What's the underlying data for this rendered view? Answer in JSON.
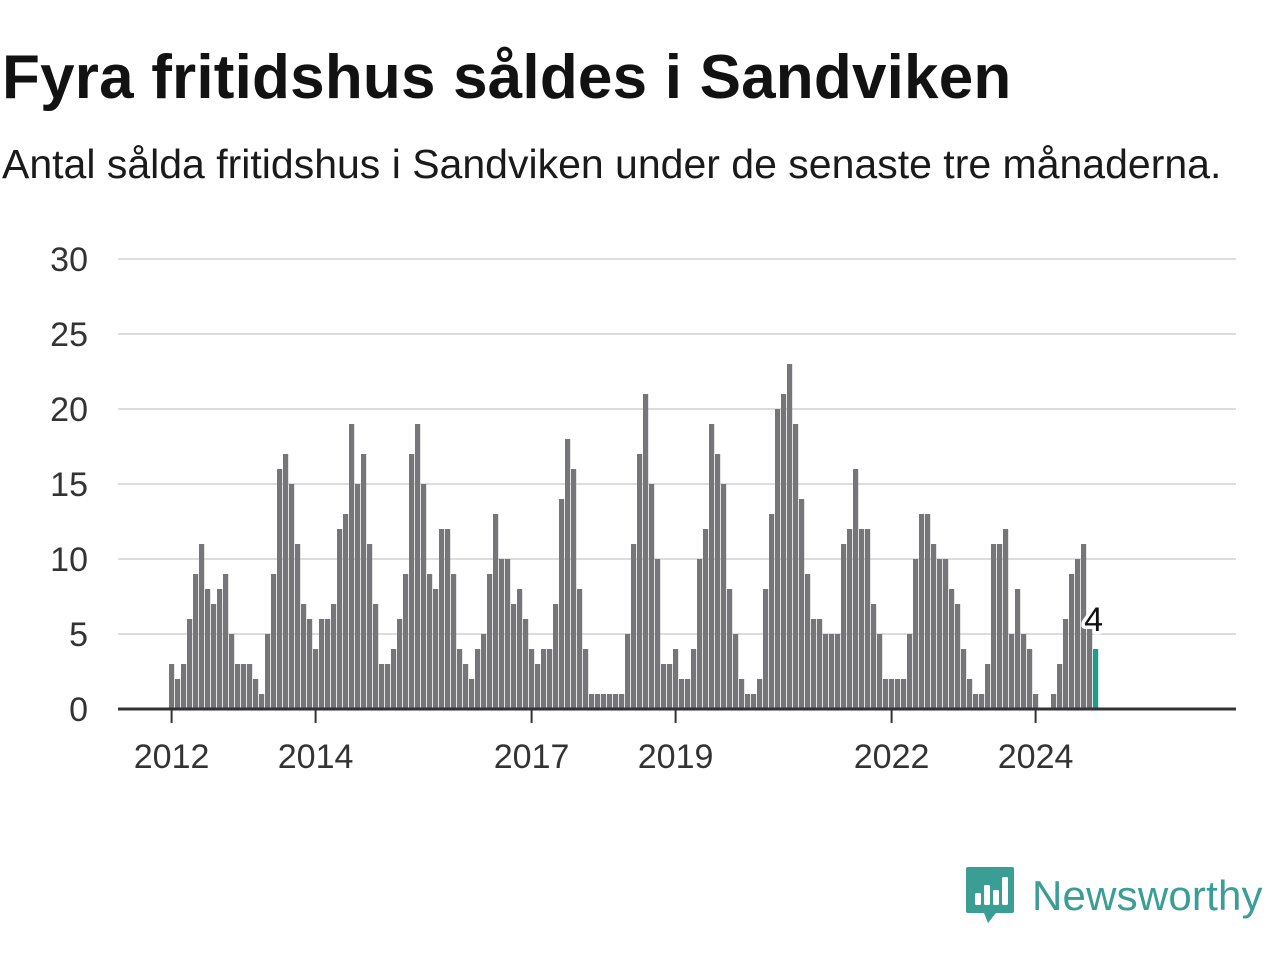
{
  "header": {
    "title": "Fyra fritidshus såldes i Sandviken",
    "subtitle": "Antal sålda fritidshus i Sandviken under de senaste tre månaderna."
  },
  "chart_data": {
    "type": "bar",
    "title": "Fyra fritidshus såldes i Sandviken",
    "subtitle": "Antal sålda fritidshus i Sandviken under de senaste tre månaderna.",
    "x_ticks": [
      "2012",
      "2014",
      "2017",
      "2019",
      "2022",
      "2024"
    ],
    "y_ticks": [
      0,
      5,
      10,
      15,
      20,
      25,
      30
    ],
    "ylim": [
      0,
      30
    ],
    "grid": true,
    "values": [
      3,
      2,
      3,
      6,
      9,
      11,
      8,
      7,
      8,
      9,
      5,
      3,
      3,
      3,
      2,
      1,
      5,
      9,
      16,
      17,
      15,
      11,
      7,
      6,
      4,
      6,
      6,
      7,
      12,
      13,
      19,
      15,
      17,
      11,
      7,
      3,
      3,
      4,
      6,
      9,
      17,
      19,
      15,
      9,
      8,
      12,
      12,
      9,
      4,
      3,
      2,
      4,
      5,
      9,
      13,
      10,
      10,
      7,
      8,
      6,
      4,
      3,
      4,
      4,
      7,
      14,
      18,
      16,
      8,
      4,
      1,
      1,
      1,
      1,
      1,
      1,
      5,
      11,
      17,
      21,
      15,
      10,
      3,
      3,
      4,
      2,
      2,
      4,
      10,
      12,
      19,
      17,
      15,
      8,
      5,
      2,
      1,
      1,
      2,
      8,
      13,
      20,
      21,
      23,
      19,
      14,
      9,
      6,
      6,
      5,
      5,
      5,
      11,
      12,
      16,
      12,
      12,
      7,
      5,
      2,
      2,
      2,
      2,
      5,
      10,
      13,
      13,
      11,
      10,
      10,
      8,
      7,
      4,
      2,
      1,
      1,
      3,
      11,
      11,
      12,
      5,
      8,
      5,
      4,
      1,
      0,
      0,
      1,
      3,
      6,
      9,
      10,
      11,
      6,
      4
    ],
    "highlight": {
      "value": 4,
      "label": "4",
      "color": "#1a9e8f"
    },
    "bar_color": "#76757a",
    "axis_color": "#333333",
    "grid_color": "#dddddd"
  },
  "brand": {
    "name": "Newsworthy",
    "color": "#3a9e95",
    "icon": "bar-chart-speech-bubble-icon"
  }
}
